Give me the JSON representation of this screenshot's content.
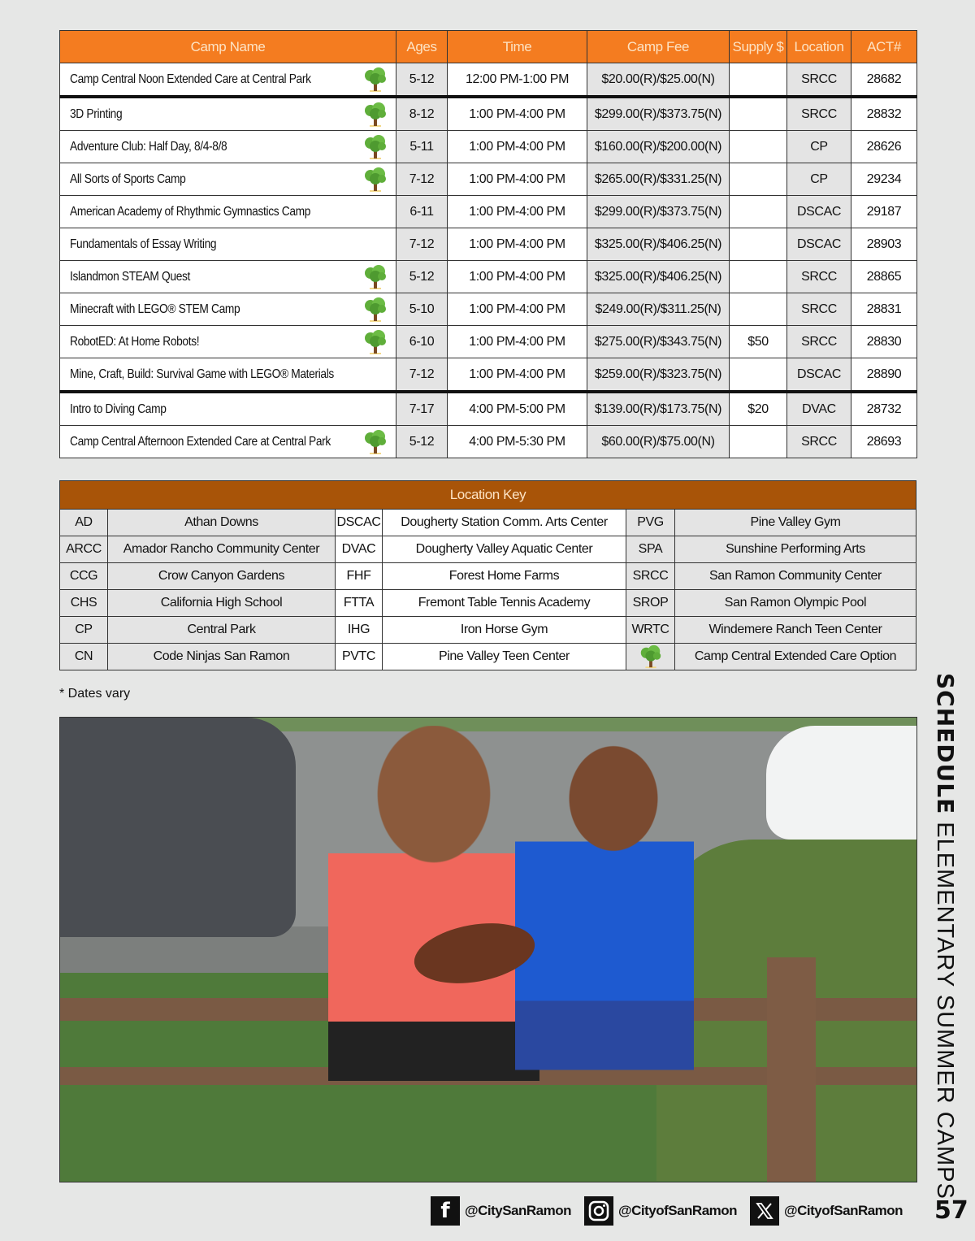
{
  "camps": {
    "headers": [
      "Camp Name",
      "Ages",
      "Time",
      "Camp Fee",
      "Supply $",
      "Location",
      "ACT#"
    ],
    "rows": [
      {
        "name": "Camp Central Noon Extended Care at Central Park",
        "tree": true,
        "ages": "5-12",
        "time": "12:00 PM-1:00 PM",
        "fee": "$20.00(R)/$25.00(N)",
        "supply": "",
        "location": "SRCC",
        "act": "28682"
      },
      {
        "name": "3D Printing",
        "tree": true,
        "ages": "8-12",
        "time": "1:00 PM-4:00 PM",
        "fee": "$299.00(R)/$373.75(N)",
        "supply": "",
        "location": "SRCC",
        "act": "28832"
      },
      {
        "name": "Adventure Club: Half Day, 8/4-8/8",
        "tree": true,
        "ages": "5-11",
        "time": "1:00 PM-4:00 PM",
        "fee": "$160.00(R)/$200.00(N)",
        "supply": "",
        "location": "CP",
        "act": "28626"
      },
      {
        "name": "All Sorts of Sports Camp",
        "tree": true,
        "ages": "7-12",
        "time": "1:00 PM-4:00 PM",
        "fee": "$265.00(R)/$331.25(N)",
        "supply": "",
        "location": "CP",
        "act": "29234"
      },
      {
        "name": "American Academy of Rhythmic Gymnastics Camp",
        "tree": false,
        "ages": "6-11",
        "time": "1:00 PM-4:00 PM",
        "fee": "$299.00(R)/$373.75(N)",
        "supply": "",
        "location": "DSCAC",
        "act": "29187"
      },
      {
        "name": "Fundamentals of Essay Writing",
        "tree": false,
        "ages": "7-12",
        "time": "1:00 PM-4:00 PM",
        "fee": "$325.00(R)/$406.25(N)",
        "supply": "",
        "location": "DSCAC",
        "act": "28903"
      },
      {
        "name": "Islandmon STEAM Quest",
        "tree": true,
        "ages": "5-12",
        "time": "1:00 PM-4:00 PM",
        "fee": "$325.00(R)/$406.25(N)",
        "supply": "",
        "location": "SRCC",
        "act": "28865"
      },
      {
        "name": "Minecraft with LEGO® STEM Camp",
        "tree": true,
        "ages": "5-10",
        "time": "1:00 PM-4:00 PM",
        "fee": "$249.00(R)/$311.25(N)",
        "supply": "",
        "location": "SRCC",
        "act": "28831"
      },
      {
        "name": "RobotED: At Home Robots!",
        "tree": true,
        "ages": "6-10",
        "time": "1:00 PM-4:00 PM",
        "fee": "$275.00(R)/$343.75(N)",
        "supply": "$50",
        "location": "SRCC",
        "act": "28830"
      },
      {
        "name": "Mine, Craft, Build: Survival Game with LEGO® Materials",
        "tree": false,
        "ages": "7-12",
        "time": "1:00 PM-4:00 PM",
        "fee": "$259.00(R)/$323.75(N)",
        "supply": "",
        "location": "DSCAC",
        "act": "28890"
      },
      {
        "name": "Intro to Diving Camp",
        "tree": false,
        "ages": "7-17",
        "time": "4:00 PM-5:00 PM",
        "fee": "$139.00(R)/$173.75(N)",
        "supply": "$20",
        "location": "DVAC",
        "act": "28732"
      },
      {
        "name": "Camp Central Afternoon Extended Care at Central Park",
        "tree": true,
        "ages": "5-12",
        "time": "4:00 PM-5:30 PM",
        "fee": "$60.00(R)/$75.00(N)",
        "supply": "",
        "location": "SRCC",
        "act": "28693"
      }
    ]
  },
  "location_key": {
    "title": "Location Key",
    "rows": [
      [
        {
          "code": "AD",
          "name": "Athan Downs"
        },
        {
          "code": "DSCAC",
          "name": "Dougherty Station Comm. Arts Center"
        },
        {
          "code": "PVG",
          "name": "Pine Valley Gym"
        }
      ],
      [
        {
          "code": "ARCC",
          "name": "Amador Rancho Community Center"
        },
        {
          "code": "DVAC",
          "name": "Dougherty Valley Aquatic Center"
        },
        {
          "code": "SPA",
          "name": "Sunshine Performing Arts"
        }
      ],
      [
        {
          "code": "CCG",
          "name": "Crow Canyon Gardens"
        },
        {
          "code": "FHF",
          "name": "Forest Home Farms"
        },
        {
          "code": "SRCC",
          "name": "San Ramon Community Center"
        }
      ],
      [
        {
          "code": "CHS",
          "name": "California High School"
        },
        {
          "code": "FTTA",
          "name": "Fremont Table Tennis Academy"
        },
        {
          "code": "SROP",
          "name": "San Ramon Olympic Pool"
        }
      ],
      [
        {
          "code": "CP",
          "name": "Central Park"
        },
        {
          "code": "IHG",
          "name": "Iron Horse Gym"
        },
        {
          "code": "WRTC",
          "name": "Windemere Ranch Teen Center"
        }
      ],
      [
        {
          "code": "CN",
          "name": "Code Ninjas San Ramon"
        },
        {
          "code": "PVTC",
          "name": "Pine Valley Teen Center"
        },
        {
          "code": "",
          "icon": "tree-icon",
          "name": "Camp Central Extended Care Option"
        }
      ]
    ]
  },
  "note": "* Dates vary",
  "side_title": {
    "bold": "SCHEDULE",
    "regular": " ELEMENTARY SUMMER CAMPS"
  },
  "footer": {
    "facebook": "@CitySanRamon",
    "instagram": "@CityofSanRamon",
    "x": "@CityofSanRamon",
    "page_number": "57"
  },
  "colors": {
    "header_orange": "#f47c20",
    "key_header_brown": "#a85408",
    "cell_grey": "#e4e4e4"
  }
}
